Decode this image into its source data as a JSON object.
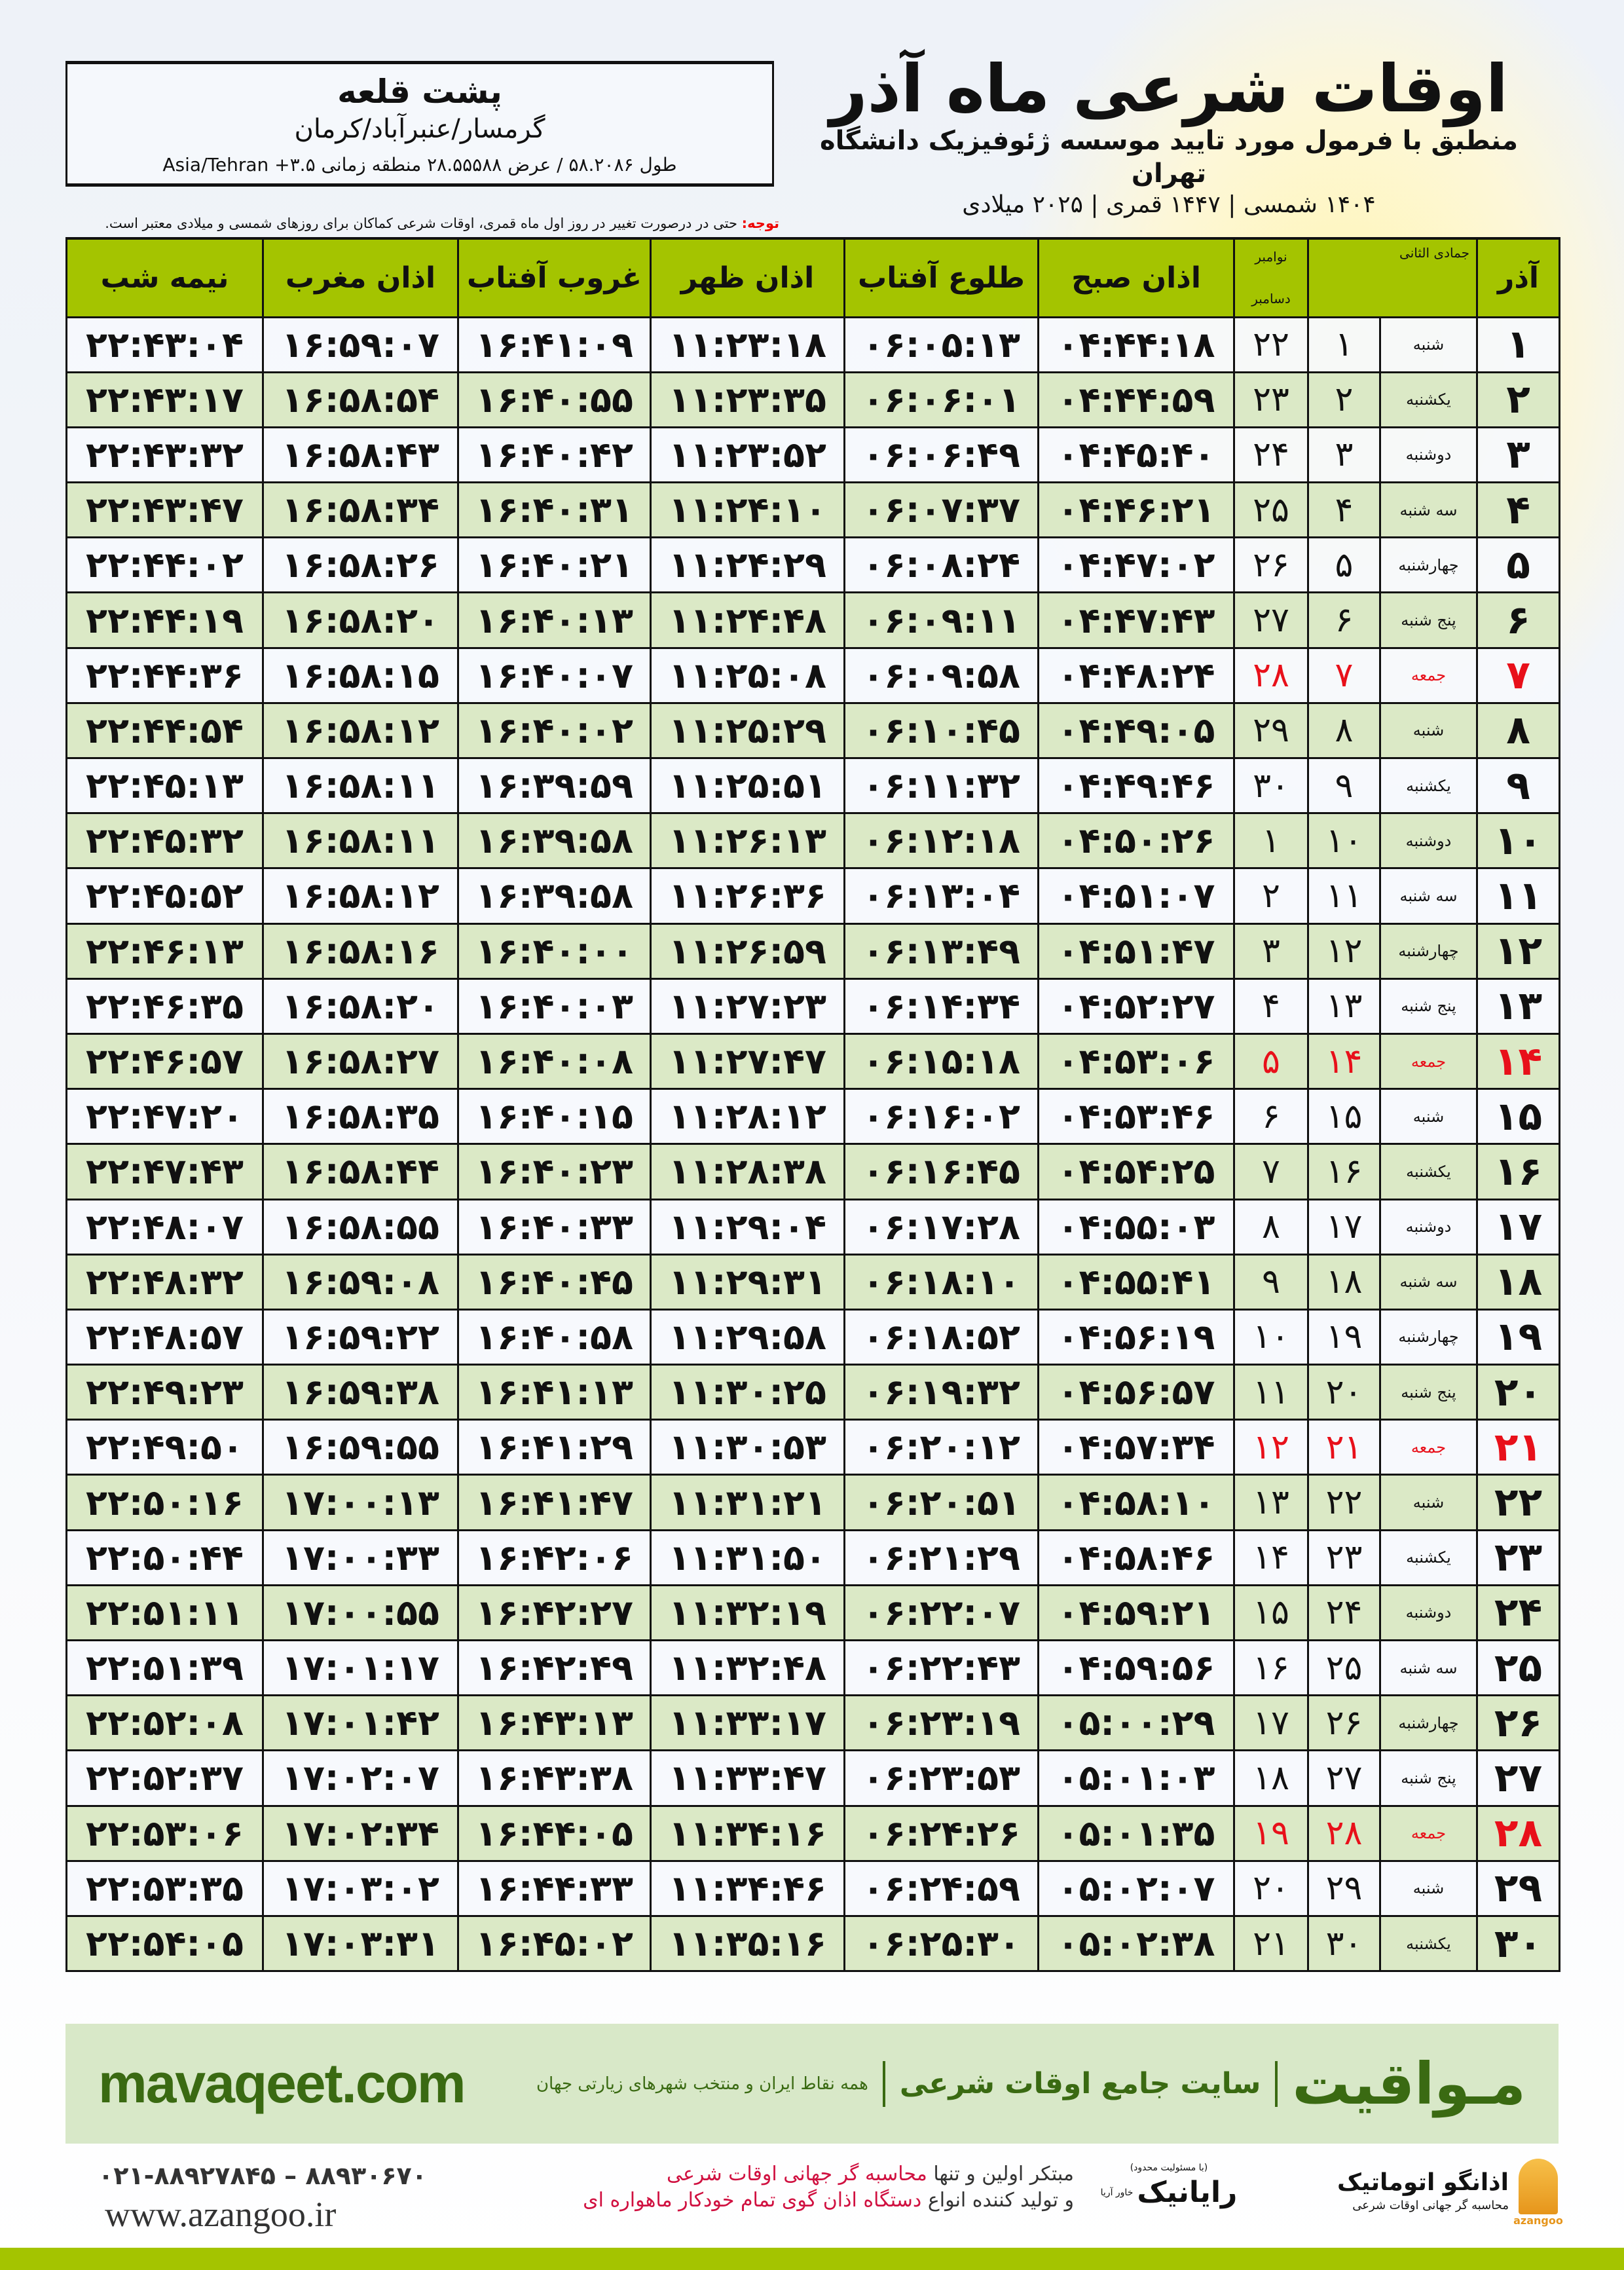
{
  "location": {
    "name": "پشت قلعه",
    "path": "گرمسار/عنبرآباد/کرمان",
    "coords": "طول ۵۸.۲۰۸۶ / عرض ۲۸.۵۵۵۸۸ منطقه زمانی ۳.۵+ Asia/Tehran"
  },
  "header": {
    "title": "اوقات شرعی ماه آذر",
    "subtitle": "منطبق با فرمول مورد تایید موسسه ژئوفیزیک دانشگاه تهران",
    "dateline": "۱۴۰۴ شمسی | ۱۴۴۷ قمری | ۲۰۲۵ میلادی"
  },
  "note": {
    "label": "توجه:",
    "text": " حتی در درصورت تغییر در روز اول ماه قمری، اوقات شرعی کماکان برای روزهای شمسی و میلادی معتبر است."
  },
  "table": {
    "headers": {
      "month": "آذر",
      "hijri": "جمادی الثانی",
      "greg_top": "نوامبر",
      "greg_bottom": "دسامبر",
      "sobh": "اذان صبح",
      "tolu": "طلوع آفتاب",
      "zohr": "اذان ظهر",
      "ghorub": "غروب آفتاب",
      "maghreb": "اذان مغرب",
      "nimeshab": "نیمه شب"
    },
    "rows": [
      [
        "۱",
        "شنبه",
        "۱",
        "۲۲",
        "۰۴:۴۴:۱۸",
        "۰۶:۰۵:۱۳",
        "۱۱:۲۳:۱۸",
        "۱۶:۴۱:۰۹",
        "۱۶:۵۹:۰۷",
        "۲۲:۴۳:۰۴"
      ],
      [
        "۲",
        "یکشنبه",
        "۲",
        "۲۳",
        "۰۴:۴۴:۵۹",
        "۰۶:۰۶:۰۱",
        "۱۱:۲۳:۳۵",
        "۱۶:۴۰:۵۵",
        "۱۶:۵۸:۵۴",
        "۲۲:۴۳:۱۷"
      ],
      [
        "۳",
        "دوشنبه",
        "۳",
        "۲۴",
        "۰۴:۴۵:۴۰",
        "۰۶:۰۶:۴۹",
        "۱۱:۲۳:۵۲",
        "۱۶:۴۰:۴۲",
        "۱۶:۵۸:۴۳",
        "۲۲:۴۳:۳۲"
      ],
      [
        "۴",
        "سه شنبه",
        "۴",
        "۲۵",
        "۰۴:۴۶:۲۱",
        "۰۶:۰۷:۳۷",
        "۱۱:۲۴:۱۰",
        "۱۶:۴۰:۳۱",
        "۱۶:۵۸:۳۴",
        "۲۲:۴۳:۴۷"
      ],
      [
        "۵",
        "چهارشنبه",
        "۵",
        "۲۶",
        "۰۴:۴۷:۰۲",
        "۰۶:۰۸:۲۴",
        "۱۱:۲۴:۲۹",
        "۱۶:۴۰:۲۱",
        "۱۶:۵۸:۲۶",
        "۲۲:۴۴:۰۲"
      ],
      [
        "۶",
        "پنج شنبه",
        "۶",
        "۲۷",
        "۰۴:۴۷:۴۳",
        "۰۶:۰۹:۱۱",
        "۱۱:۲۴:۴۸",
        "۱۶:۴۰:۱۳",
        "۱۶:۵۸:۲۰",
        "۲۲:۴۴:۱۹"
      ],
      [
        "۷",
        "جمعه",
        "۷",
        "۲۸",
        "۰۴:۴۸:۲۴",
        "۰۶:۰۹:۵۸",
        "۱۱:۲۵:۰۸",
        "۱۶:۴۰:۰۷",
        "۱۶:۵۸:۱۵",
        "۲۲:۴۴:۳۶"
      ],
      [
        "۸",
        "شنبه",
        "۸",
        "۲۹",
        "۰۴:۴۹:۰۵",
        "۰۶:۱۰:۴۵",
        "۱۱:۲۵:۲۹",
        "۱۶:۴۰:۰۲",
        "۱۶:۵۸:۱۲",
        "۲۲:۴۴:۵۴"
      ],
      [
        "۹",
        "یکشنبه",
        "۹",
        "۳۰",
        "۰۴:۴۹:۴۶",
        "۰۶:۱۱:۳۲",
        "۱۱:۲۵:۵۱",
        "۱۶:۳۹:۵۹",
        "۱۶:۵۸:۱۱",
        "۲۲:۴۵:۱۳"
      ],
      [
        "۱۰",
        "دوشنبه",
        "۱۰",
        "۱",
        "۰۴:۵۰:۲۶",
        "۰۶:۱۲:۱۸",
        "۱۱:۲۶:۱۳",
        "۱۶:۳۹:۵۸",
        "۱۶:۵۸:۱۱",
        "۲۲:۴۵:۳۲"
      ],
      [
        "۱۱",
        "سه شنبه",
        "۱۱",
        "۲",
        "۰۴:۵۱:۰۷",
        "۰۶:۱۳:۰۴",
        "۱۱:۲۶:۳۶",
        "۱۶:۳۹:۵۸",
        "۱۶:۵۸:۱۲",
        "۲۲:۴۵:۵۲"
      ],
      [
        "۱۲",
        "چهارشنبه",
        "۱۲",
        "۳",
        "۰۴:۵۱:۴۷",
        "۰۶:۱۳:۴۹",
        "۱۱:۲۶:۵۹",
        "۱۶:۴۰:۰۰",
        "۱۶:۵۸:۱۶",
        "۲۲:۴۶:۱۳"
      ],
      [
        "۱۳",
        "پنج شنبه",
        "۱۳",
        "۴",
        "۰۴:۵۲:۲۷",
        "۰۶:۱۴:۳۴",
        "۱۱:۲۷:۲۳",
        "۱۶:۴۰:۰۳",
        "۱۶:۵۸:۲۰",
        "۲۲:۴۶:۳۵"
      ],
      [
        "۱۴",
        "جمعه",
        "۱۴",
        "۵",
        "۰۴:۵۳:۰۶",
        "۰۶:۱۵:۱۸",
        "۱۱:۲۷:۴۷",
        "۱۶:۴۰:۰۸",
        "۱۶:۵۸:۲۷",
        "۲۲:۴۶:۵۷"
      ],
      [
        "۱۵",
        "شنبه",
        "۱۵",
        "۶",
        "۰۴:۵۳:۴۶",
        "۰۶:۱۶:۰۲",
        "۱۱:۲۸:۱۲",
        "۱۶:۴۰:۱۵",
        "۱۶:۵۸:۳۵",
        "۲۲:۴۷:۲۰"
      ],
      [
        "۱۶",
        "یکشنبه",
        "۱۶",
        "۷",
        "۰۴:۵۴:۲۵",
        "۰۶:۱۶:۴۵",
        "۱۱:۲۸:۳۸",
        "۱۶:۴۰:۲۳",
        "۱۶:۵۸:۴۴",
        "۲۲:۴۷:۴۳"
      ],
      [
        "۱۷",
        "دوشنبه",
        "۱۷",
        "۸",
        "۰۴:۵۵:۰۳",
        "۰۶:۱۷:۲۸",
        "۱۱:۲۹:۰۴",
        "۱۶:۴۰:۳۳",
        "۱۶:۵۸:۵۵",
        "۲۲:۴۸:۰۷"
      ],
      [
        "۱۸",
        "سه شنبه",
        "۱۸",
        "۹",
        "۰۴:۵۵:۴۱",
        "۰۶:۱۸:۱۰",
        "۱۱:۲۹:۳۱",
        "۱۶:۴۰:۴۵",
        "۱۶:۵۹:۰۸",
        "۲۲:۴۸:۳۲"
      ],
      [
        "۱۹",
        "چهارشنبه",
        "۱۹",
        "۱۰",
        "۰۴:۵۶:۱۹",
        "۰۶:۱۸:۵۲",
        "۱۱:۲۹:۵۸",
        "۱۶:۴۰:۵۸",
        "۱۶:۵۹:۲۲",
        "۲۲:۴۸:۵۷"
      ],
      [
        "۲۰",
        "پنج شنبه",
        "۲۰",
        "۱۱",
        "۰۴:۵۶:۵۷",
        "۰۶:۱۹:۳۲",
        "۱۱:۳۰:۲۵",
        "۱۶:۴۱:۱۳",
        "۱۶:۵۹:۳۸",
        "۲۲:۴۹:۲۳"
      ],
      [
        "۲۱",
        "جمعه",
        "۲۱",
        "۱۲",
        "۰۴:۵۷:۳۴",
        "۰۶:۲۰:۱۲",
        "۱۱:۳۰:۵۳",
        "۱۶:۴۱:۲۹",
        "۱۶:۵۹:۵۵",
        "۲۲:۴۹:۵۰"
      ],
      [
        "۲۲",
        "شنبه",
        "۲۲",
        "۱۳",
        "۰۴:۵۸:۱۰",
        "۰۶:۲۰:۵۱",
        "۱۱:۳۱:۲۱",
        "۱۶:۴۱:۴۷",
        "۱۷:۰۰:۱۳",
        "۲۲:۵۰:۱۶"
      ],
      [
        "۲۳",
        "یکشنبه",
        "۲۳",
        "۱۴",
        "۰۴:۵۸:۴۶",
        "۰۶:۲۱:۲۹",
        "۱۱:۳۱:۵۰",
        "۱۶:۴۲:۰۶",
        "۱۷:۰۰:۳۳",
        "۲۲:۵۰:۴۴"
      ],
      [
        "۲۴",
        "دوشنبه",
        "۲۴",
        "۱۵",
        "۰۴:۵۹:۲۱",
        "۰۶:۲۲:۰۷",
        "۱۱:۳۲:۱۹",
        "۱۶:۴۲:۲۷",
        "۱۷:۰۰:۵۵",
        "۲۲:۵۱:۱۱"
      ],
      [
        "۲۵",
        "سه شنبه",
        "۲۵",
        "۱۶",
        "۰۴:۵۹:۵۶",
        "۰۶:۲۲:۴۳",
        "۱۱:۳۲:۴۸",
        "۱۶:۴۲:۴۹",
        "۱۷:۰۱:۱۷",
        "۲۲:۵۱:۳۹"
      ],
      [
        "۲۶",
        "چهارشنبه",
        "۲۶",
        "۱۷",
        "۰۵:۰۰:۲۹",
        "۰۶:۲۳:۱۹",
        "۱۱:۳۳:۱۷",
        "۱۶:۴۳:۱۳",
        "۱۷:۰۱:۴۲",
        "۲۲:۵۲:۰۸"
      ],
      [
        "۲۷",
        "پنج شنبه",
        "۲۷",
        "۱۸",
        "۰۵:۰۱:۰۳",
        "۰۶:۲۳:۵۳",
        "۱۱:۳۳:۴۷",
        "۱۶:۴۳:۳۸",
        "۱۷:۰۲:۰۷",
        "۲۲:۵۲:۳۷"
      ],
      [
        "۲۸",
        "جمعه",
        "۲۸",
        "۱۹",
        "۰۵:۰۱:۳۵",
        "۰۶:۲۴:۲۶",
        "۱۱:۳۴:۱۶",
        "۱۶:۴۴:۰۵",
        "۱۷:۰۲:۳۴",
        "۲۲:۵۳:۰۶"
      ],
      [
        "۲۹",
        "شنبه",
        "۲۹",
        "۲۰",
        "۰۵:۰۲:۰۷",
        "۰۶:۲۴:۵۹",
        "۱۱:۳۴:۴۶",
        "۱۶:۴۴:۳۳",
        "۱۷:۰۳:۰۲",
        "۲۲:۵۳:۳۵"
      ],
      [
        "۳۰",
        "یکشنبه",
        "۳۰",
        "۲۱",
        "۰۵:۰۲:۳۸",
        "۰۶:۲۵:۳۰",
        "۱۱:۳۵:۱۶",
        "۱۶:۴۵:۰۲",
        "۱۷:۰۳:۳۱",
        "۲۲:۵۴:۰۵"
      ]
    ],
    "friday_label": "جمعه"
  },
  "footer": {
    "brand": "مـواقیت",
    "tagline": "سایت جامع اوقات شرعی",
    "subline": "همه نقاط ایران و منتخب شهرهای زیارتی جهان",
    "site": "mavaqeet.com",
    "phone": "۰۲۱-۸۸۹۲۷۸۴۵ – ۸۸۹۳۰۶۷۰",
    "web": "www.azangoo.ir",
    "promo1a": "مبتکر اولین و تنها ",
    "promo1b": "محاسبه گر جهانی اوقات شرعی",
    "promo2a": "و تولید کننده انواع ",
    "promo2b": "دستگاه اذان گوی تمام خودکار ماهواره ای",
    "logo1_name": "رایانیک",
    "logo1_note": "(با مسئولیت محدود)",
    "logo1_side": "خاور آریا",
    "logo2_name": "اذانگو اتوماتیک",
    "logo2_sub": "محاسبه گر جهانی اوقات شرعی",
    "logo2_latin": "azangoo"
  },
  "colors": {
    "header_green": "#a4c400",
    "row_green": "#dbe9c6",
    "friday_red": "#e8101a",
    "brand_green": "#3a6a12",
    "promo_red": "#d01040"
  }
}
